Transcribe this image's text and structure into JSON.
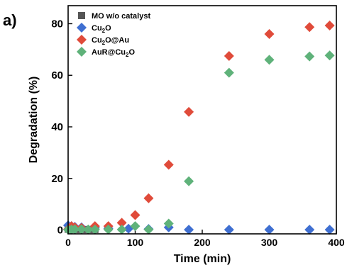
{
  "panel_label": "a)",
  "chart_data": {
    "type": "scatter",
    "xlabel": "Time (min)",
    "ylabel": "Degradation (%)",
    "xlim": [
      0,
      400
    ],
    "ylim": [
      -1.5,
      87
    ],
    "xticks": [
      0,
      100,
      200,
      300,
      400
    ],
    "yticks": [
      0,
      20,
      40,
      60,
      80
    ],
    "grid": false,
    "legend_position": "top-left",
    "series": [
      {
        "name": "MO w/o catalyst",
        "name_parts": [
          "MO w/o catalyst"
        ],
        "marker": "square",
        "color": "#555555",
        "x": [
          0,
          5,
          10,
          20,
          30,
          40
        ],
        "y": [
          0.3,
          0.3,
          0.2,
          0.2,
          0.2,
          0.2
        ]
      },
      {
        "name": "Cu2O",
        "name_parts": [
          "Cu",
          "2",
          "O"
        ],
        "marker": "diamond",
        "color": "#3f6fd1",
        "x": [
          0,
          5,
          10,
          20,
          40,
          60,
          90,
          120,
          150,
          180,
          240,
          300,
          360,
          390
        ],
        "y": [
          1.8,
          1.5,
          1.2,
          1.0,
          0.8,
          0.6,
          0.5,
          0.4,
          1.0,
          0.1,
          0.1,
          0.1,
          0.1,
          0.1
        ]
      },
      {
        "name": "Cu2O@Au",
        "name_parts": [
          "Cu",
          "2",
          "O@Au"
        ],
        "marker": "diamond",
        "color": "#e04b3a",
        "x": [
          0,
          5,
          10,
          20,
          40,
          60,
          80,
          100,
          120,
          150,
          180,
          240,
          300,
          360,
          390
        ],
        "y": [
          0.3,
          1.5,
          1.0,
          0.8,
          1.5,
          1.5,
          2.8,
          5.8,
          12.3,
          25.3,
          45.8,
          67.5,
          76.0,
          78.7,
          79.3
        ]
      },
      {
        "name": "AuR@Cu2O",
        "name_parts": [
          "AuR@Cu",
          "2",
          "O"
        ],
        "marker": "diamond",
        "color": "#5fb27a",
        "x": [
          0,
          5,
          10,
          20,
          30,
          40,
          60,
          80,
          100,
          120,
          150,
          180,
          240,
          300,
          360,
          390
        ],
        "y": [
          0.1,
          0.2,
          0.3,
          0.3,
          0.2,
          0.2,
          0.2,
          0.2,
          1.5,
          0.2,
          2.5,
          18.9,
          61.0,
          66.0,
          67.3,
          67.7
        ]
      }
    ]
  }
}
